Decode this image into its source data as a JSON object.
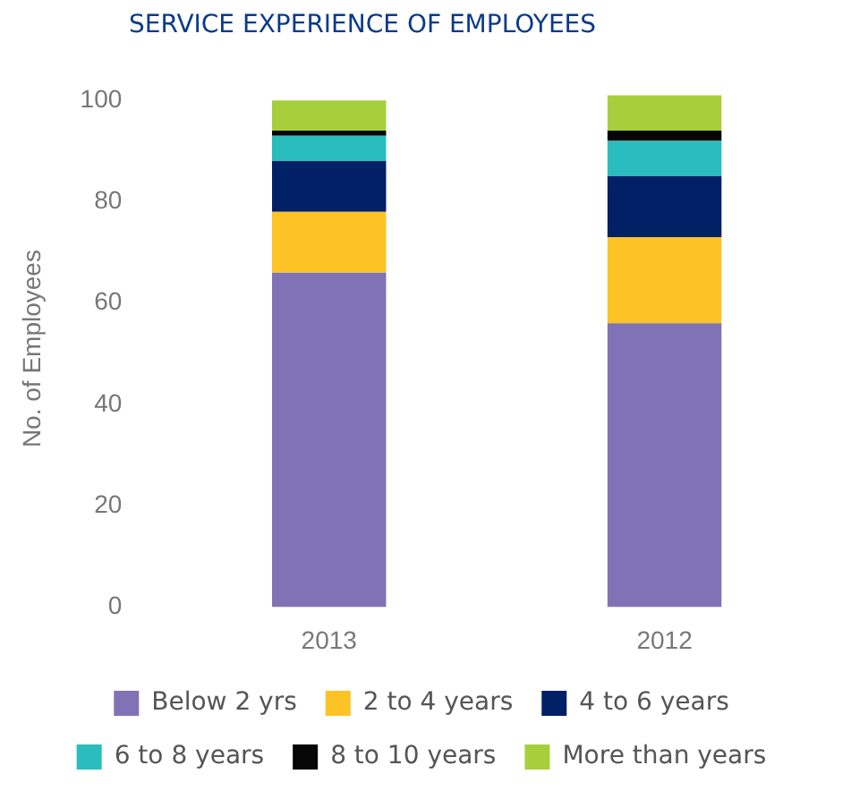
{
  "chart_data": {
    "type": "bar",
    "title": "SERVICE EXPERIENCE OF EMPLOYEES",
    "ylabel": "No. of Employees",
    "categories": [
      "2013",
      "2012"
    ],
    "stacked": true,
    "series": [
      {
        "name": "Below 2 yrs",
        "color": "#8073b5",
        "values": [
          66,
          56
        ]
      },
      {
        "name": "2 to 4 years",
        "color": "#fdc325",
        "values": [
          12,
          17
        ]
      },
      {
        "name": "4 to 6 years",
        "color": "#022066",
        "values": [
          10,
          12
        ]
      },
      {
        "name": "6 to 8 years",
        "color": "#29bdbe",
        "values": [
          5,
          7
        ]
      },
      {
        "name": "8 to 10 years",
        "color": "#060606",
        "values": [
          1,
          2
        ]
      },
      {
        "name": "More than years",
        "color": "#a7cf3c",
        "values": [
          6,
          7
        ]
      }
    ],
    "ylim": [
      0,
      102
    ],
    "yticks": [
      0,
      20,
      40,
      60,
      80,
      100
    ],
    "grid": false,
    "legend": "bottom"
  }
}
